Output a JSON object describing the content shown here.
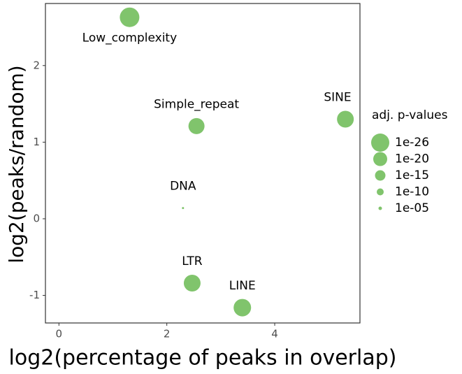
{
  "chart_data": {
    "type": "scatter",
    "x_label": "log2(percentage of peaks in overlap)",
    "y_label": "log2(peaks/random)",
    "labels": [
      "Low_complexity",
      "Simple_repeat",
      "SINE",
      "DNA",
      "LTR",
      "LINE"
    ],
    "x": [
      1.31,
      2.55,
      5.31,
      2.3,
      2.47,
      3.4
    ],
    "series": [
      {
        "color": "#80c46c",
        "values": [
          2.63,
          1.21,
          1.3,
          0.14,
          -0.84,
          -1.16
        ],
        "sizes": [
          28,
          23,
          24,
          3,
          24,
          25
        ]
      }
    ],
    "xlim": [
      -0.25,
      5.58
    ],
    "ylim": [
      -1.36,
      2.81
    ],
    "xticks": [
      0,
      2,
      4
    ],
    "yticks": [
      -1,
      0,
      1,
      2
    ],
    "hline": 0,
    "vline": 0,
    "grid": true,
    "size_legend": {
      "title": "adj. p-values",
      "entries": [
        {
          "value": 26,
          "label": "1e-26"
        },
        {
          "value": 20,
          "label": "1e-20"
        },
        {
          "value": 15,
          "label": "1e-15"
        },
        {
          "value": 10,
          "label": "1e-10"
        },
        {
          "value": 5,
          "label": "1e-05"
        }
      ]
    }
  }
}
